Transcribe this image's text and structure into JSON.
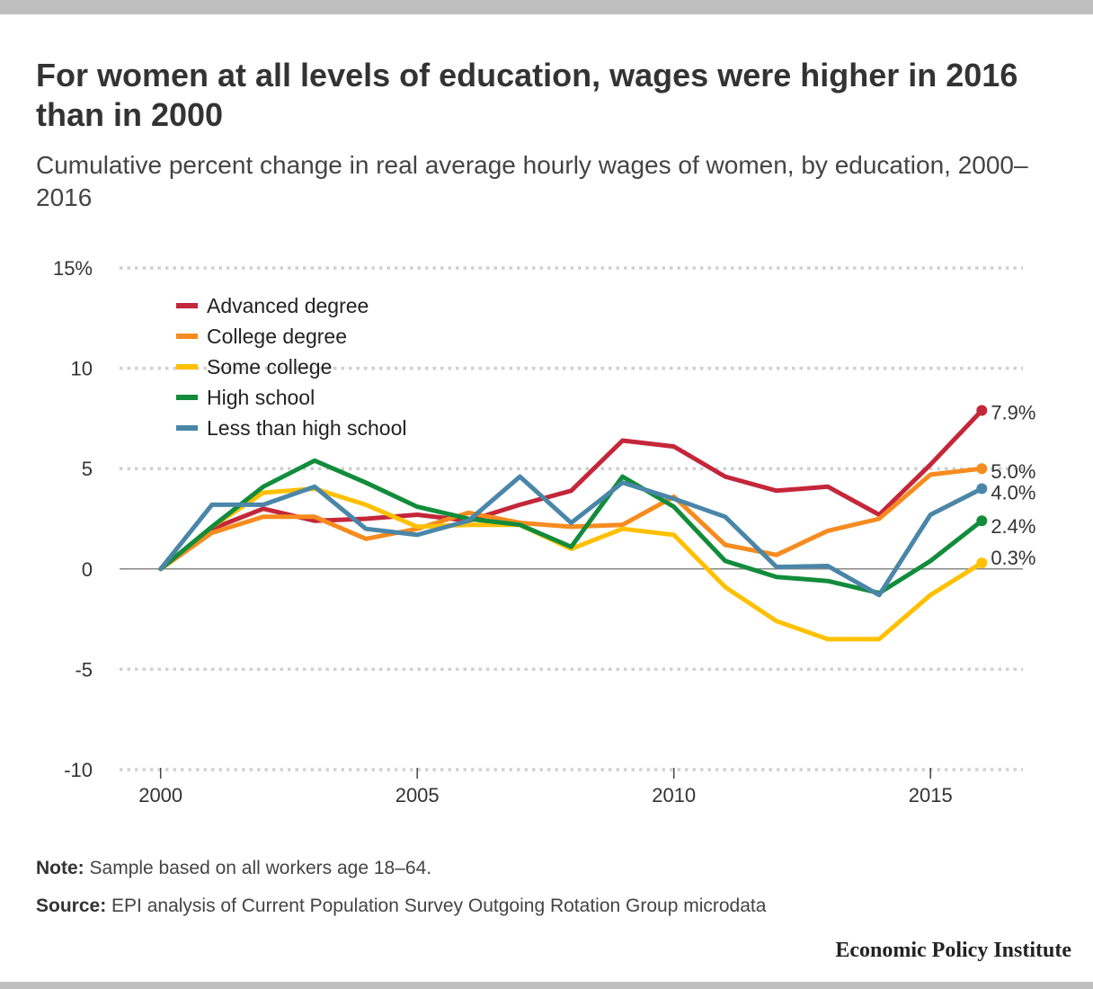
{
  "title": "For women at all levels of education, wages were higher in 2016 than in 2000",
  "subtitle": "Cumulative percent change in real average hourly wages of women, by education, 2000–2016",
  "note_label": "Note:",
  "note_text": "Sample based on all workers age 18–64.",
  "source_label": "Source:",
  "source_text": "EPI analysis of Current Population Survey Outgoing Rotation Group microdata",
  "brand": "Economic Policy Institute",
  "chart_data": {
    "type": "line",
    "x": [
      2000,
      2001,
      2002,
      2003,
      2004,
      2005,
      2006,
      2007,
      2008,
      2009,
      2010,
      2011,
      2012,
      2013,
      2014,
      2015,
      2016
    ],
    "xlim": [
      1999.2,
      2016.8
    ],
    "xticks": [
      2000,
      2005,
      2010,
      2015
    ],
    "ylim": [
      -10,
      15
    ],
    "yticks": [
      15,
      10,
      5,
      0,
      -5,
      -10
    ],
    "ytick_labels": [
      "15%",
      "10",
      "5",
      "0",
      "-5",
      "-10"
    ],
    "grid": "horizontal dotted",
    "legend_position": "top-left",
    "series": [
      {
        "name": "Advanced degree",
        "color": "#c4263a",
        "values": [
          0,
          2.0,
          3.0,
          2.4,
          2.5,
          2.7,
          2.4,
          3.2,
          3.9,
          6.4,
          6.1,
          4.6,
          3.9,
          4.1,
          2.7,
          5.2,
          7.9
        ],
        "end_label": "7.9%"
      },
      {
        "name": "College degree",
        "color": "#f68b1f",
        "values": [
          0,
          1.8,
          2.6,
          2.6,
          1.5,
          2.0,
          2.8,
          2.3,
          2.1,
          2.2,
          3.6,
          1.2,
          0.7,
          1.9,
          2.5,
          4.7,
          5.0
        ],
        "end_label": "5.0%"
      },
      {
        "name": "Some college",
        "color": "#ffc000",
        "values": [
          0,
          2.1,
          3.8,
          4.0,
          3.2,
          2.1,
          2.2,
          2.2,
          1.0,
          2.0,
          1.7,
          -0.9,
          -2.6,
          -3.5,
          -3.5,
          -1.3,
          0.3
        ],
        "end_label": "0.3%"
      },
      {
        "name": "High school",
        "color": "#128c3b",
        "values": [
          0,
          2.1,
          4.1,
          5.4,
          4.3,
          3.1,
          2.5,
          2.2,
          1.1,
          4.6,
          3.1,
          0.4,
          -0.4,
          -0.6,
          -1.2,
          0.4,
          2.4
        ],
        "end_label": "2.4%"
      },
      {
        "name": "Less than high school",
        "color": "#4a86a8",
        "values": [
          0,
          3.2,
          3.2,
          4.1,
          2.0,
          1.7,
          2.4,
          4.6,
          2.3,
          4.3,
          3.5,
          2.6,
          0.1,
          0.15,
          -1.3,
          2.7,
          4.0
        ],
        "end_label": "4.0%"
      }
    ]
  }
}
